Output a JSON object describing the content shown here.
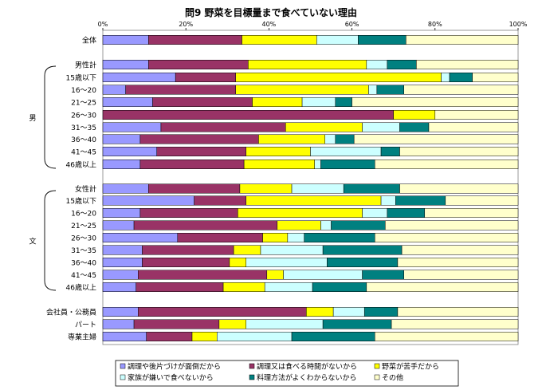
{
  "chart_data": {
    "type": "bar",
    "stacked": true,
    "orientation": "horizontal",
    "title": "問9  野菜を目標量まで食べていない理由",
    "x_tick_labels": [
      "0%",
      "20%",
      "40%",
      "60%",
      "80%",
      "100%"
    ],
    "xlim": [
      0,
      100
    ],
    "legend_placement": "bottom",
    "gender_labels": {
      "male": "男",
      "female": "文"
    },
    "series": [
      {
        "name": "調理や後片づけが面倒だから",
        "color": "#9999FF"
      },
      {
        "name": "調理又は食べる時間がないから",
        "color": "#993366"
      },
      {
        "name": "野菜が苦手だから",
        "color": "#FFFF00"
      },
      {
        "name": "家族が嫌いで食べないから",
        "color": "#CCFFFF"
      },
      {
        "name": "料理方法がよくわからないから",
        "color": "#008080"
      },
      {
        "name": "その他",
        "color": "#FFFFCC"
      }
    ],
    "rows": [
      {
        "label": "全体",
        "group": "all",
        "values": [
          11,
          22.5,
          18,
          10,
          11.5,
          27
        ]
      },
      {
        "label": "男性計",
        "group": "male",
        "values": [
          11,
          24,
          28.5,
          5,
          7,
          24.5
        ]
      },
      {
        "label": "15歳以下",
        "group": "male",
        "values": [
          17.5,
          14.5,
          49.5,
          2,
          5.5,
          11
        ]
      },
      {
        "label": "16～20",
        "group": "male",
        "values": [
          5.5,
          26.5,
          32,
          2,
          6.5,
          27.5
        ]
      },
      {
        "label": "21～25",
        "group": "male",
        "values": [
          12,
          24,
          12,
          8,
          4,
          40
        ]
      },
      {
        "label": "26～30",
        "group": "male",
        "values": [
          0,
          70,
          10,
          0,
          0,
          20
        ]
      },
      {
        "label": "31～35",
        "group": "male",
        "values": [
          14,
          30,
          18.5,
          9,
          7,
          21.5
        ]
      },
      {
        "label": "36～40",
        "group": "male",
        "values": [
          9,
          28.5,
          16,
          2.5,
          4.5,
          39.5
        ]
      },
      {
        "label": "41～45",
        "group": "male",
        "values": [
          13,
          21.5,
          15.5,
          17,
          4.5,
          28.5
        ]
      },
      {
        "label": "46歳以上",
        "group": "male",
        "values": [
          9,
          25,
          17,
          1.5,
          13,
          34.5
        ]
      },
      {
        "label": "女性計",
        "group": "female",
        "values": [
          11,
          22,
          12.5,
          12.5,
          13.5,
          28.5
        ]
      },
      {
        "label": "15歳以下",
        "group": "female",
        "values": [
          22,
          12.5,
          32.5,
          3.5,
          12,
          17.5
        ]
      },
      {
        "label": "16～20",
        "group": "female",
        "values": [
          9,
          23.5,
          30,
          6,
          9,
          22.5
        ]
      },
      {
        "label": "21～25",
        "group": "female",
        "values": [
          7.5,
          34.5,
          10.5,
          2.5,
          13,
          32
        ]
      },
      {
        "label": "26～30",
        "group": "female",
        "values": [
          18,
          20.5,
          6,
          4,
          17,
          34.5
        ]
      },
      {
        "label": "31～35",
        "group": "female",
        "values": [
          9.5,
          22,
          6.5,
          15,
          19,
          28
        ]
      },
      {
        "label": "36～40",
        "group": "female",
        "values": [
          9.5,
          21,
          4,
          19.5,
          17,
          29
        ]
      },
      {
        "label": "41～45",
        "group": "female",
        "values": [
          8.5,
          31,
          4,
          19,
          10,
          27.5
        ]
      },
      {
        "label": "46歳以上",
        "group": "female",
        "values": [
          8,
          21,
          10,
          11.5,
          13,
          36.5
        ]
      },
      {
        "label": "会社員・公務員",
        "group": "occupation",
        "values": [
          8.5,
          40.5,
          6.5,
          7.5,
          8,
          29
        ]
      },
      {
        "label": "パート",
        "group": "occupation",
        "values": [
          7.5,
          20.5,
          6.5,
          18.5,
          16.5,
          30.5
        ]
      },
      {
        "label": "専業主婦",
        "group": "occupation",
        "values": [
          10.5,
          11,
          6,
          18,
          20,
          34.5
        ]
      }
    ]
  }
}
